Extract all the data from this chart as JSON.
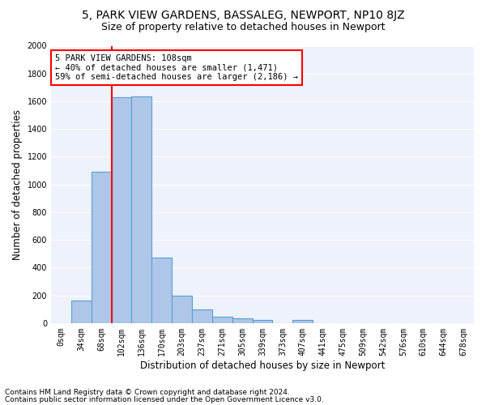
{
  "title": "5, PARK VIEW GARDENS, BASSALEG, NEWPORT, NP10 8JZ",
  "subtitle": "Size of property relative to detached houses in Newport",
  "xlabel": "Distribution of detached houses by size in Newport",
  "ylabel": "Number of detached properties",
  "footnote1": "Contains HM Land Registry data © Crown copyright and database right 2024.",
  "footnote2": "Contains public sector information licensed under the Open Government Licence v3.0.",
  "bar_labels": [
    "0sqm",
    "34sqm",
    "68sqm",
    "102sqm",
    "136sqm",
    "170sqm",
    "203sqm",
    "237sqm",
    "271sqm",
    "305sqm",
    "339sqm",
    "373sqm",
    "407sqm",
    "441sqm",
    "475sqm",
    "509sqm",
    "542sqm",
    "576sqm",
    "610sqm",
    "644sqm",
    "678sqm"
  ],
  "bar_values": [
    0,
    165,
    1090,
    1630,
    1635,
    475,
    200,
    100,
    45,
    35,
    20,
    0,
    20,
    0,
    0,
    0,
    0,
    0,
    0,
    0,
    0
  ],
  "bar_color": "#aec6e8",
  "bar_edge_color": "#5a9fd4",
  "bar_edge_width": 0.8,
  "vline_x_index": 3,
  "vline_color": "red",
  "annotation_text": "5 PARK VIEW GARDENS: 108sqm\n← 40% of detached houses are smaller (1,471)\n59% of semi-detached houses are larger (2,186) →",
  "annotation_box_color": "white",
  "annotation_box_edge": "red",
  "ylim": [
    0,
    2000
  ],
  "yticks": [
    0,
    200,
    400,
    600,
    800,
    1000,
    1200,
    1400,
    1600,
    1800,
    2000
  ],
  "background_color": "#eef2fb",
  "grid_color": "white",
  "title_fontsize": 10,
  "subtitle_fontsize": 9,
  "annotation_fontsize": 7.5,
  "axis_label_fontsize": 8.5,
  "tick_fontsize": 7,
  "footnote_fontsize": 6.5
}
